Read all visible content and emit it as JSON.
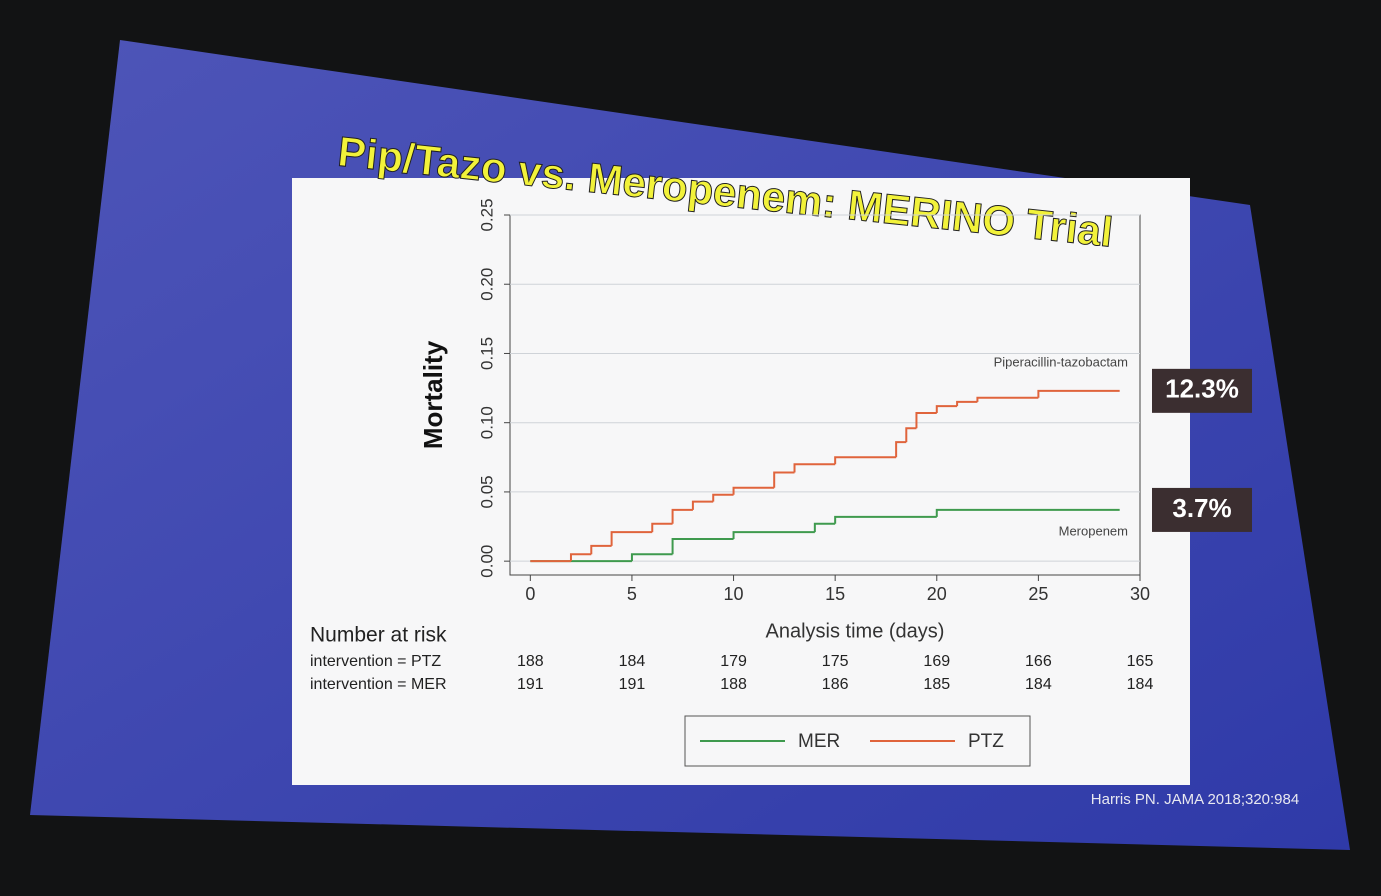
{
  "chart_data": {
    "type": "step",
    "title": "Pip/Tazo vs. Meropenem: MERINO Trial",
    "x_label": "Analysis time (days)",
    "y_label": "Mortality",
    "xlim": [
      -1,
      30
    ],
    "ylim": [
      -0.01,
      0.25
    ],
    "xticks": [
      0,
      5,
      10,
      15,
      20,
      25,
      30
    ],
    "yticks": [
      {
        "value": 0,
        "label": "0.00"
      },
      {
        "value": 0.05,
        "label": "0.05"
      },
      {
        "value": 0.1,
        "label": "0.10"
      },
      {
        "value": 0.15,
        "label": "0.15"
      },
      {
        "value": 0.2,
        "label": "0.20"
      },
      {
        "value": 0.25,
        "label": "0.25"
      }
    ],
    "grid": true,
    "series": [
      {
        "name": "MER",
        "color": "#3f9a4e",
        "line_label": "Meropenem",
        "end_label": "3.7%",
        "x": [
          0,
          5,
          7,
          10,
          14,
          15,
          20,
          29
        ],
        "values": [
          0,
          0.005,
          0.016,
          0.021,
          0.027,
          0.032,
          0.037,
          0.037
        ]
      },
      {
        "name": "PTZ",
        "color": "#e0643c",
        "line_label": "Piperacillin-tazobactam",
        "end_label": "12.3%",
        "x": [
          0,
          2,
          3,
          4,
          6,
          7,
          8,
          9,
          10,
          12,
          13,
          15,
          18,
          18.5,
          19,
          20,
          21,
          22,
          25,
          29
        ],
        "values": [
          0,
          0.005,
          0.011,
          0.021,
          0.027,
          0.037,
          0.043,
          0.048,
          0.053,
          0.064,
          0.07,
          0.075,
          0.086,
          0.096,
          0.107,
          0.112,
          0.115,
          0.118,
          0.123,
          0.123
        ]
      }
    ],
    "risk_table": {
      "title": "Number at risk",
      "rows": [
        {
          "label": "intervention = PTZ",
          "values": [
            188,
            184,
            179,
            175,
            169,
            166,
            165
          ]
        },
        {
          "label": "intervention = MER",
          "values": [
            191,
            191,
            188,
            186,
            185,
            184,
            184
          ]
        }
      ]
    },
    "source": "Harris PN. JAMA 2018;320:984"
  }
}
